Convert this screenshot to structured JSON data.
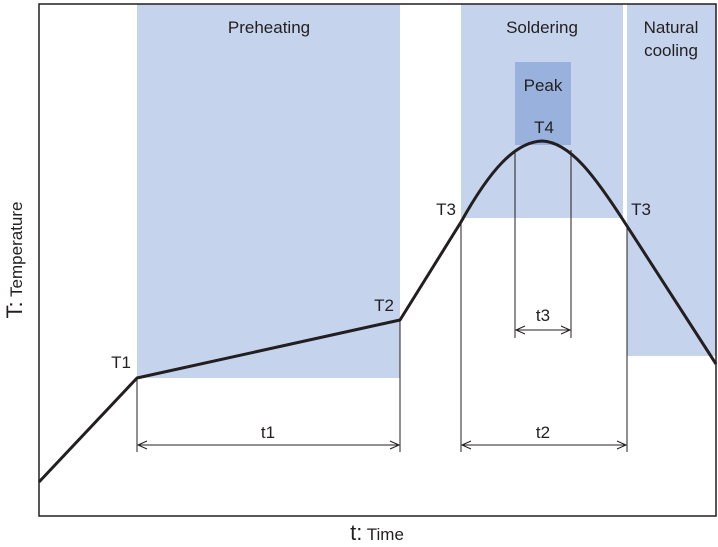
{
  "diagram": {
    "regions": {
      "preheating": "Preheating",
      "soldering": "Soldering",
      "natural_cooling_line1": "Natural",
      "natural_cooling_line2": "cooling",
      "peak": "Peak"
    },
    "temperature_points": {
      "t1_label": "T1",
      "t2_label": "T2",
      "t3_left_label": "T3",
      "t3_right_label": "T3",
      "t4_label": "T4"
    },
    "intervals": {
      "preheat_time": "t1",
      "soldering_time": "t2",
      "peak_time": "t3"
    },
    "axes": {
      "x_letter": "t",
      "x_sep": ":",
      "x_word": " Time",
      "y_letter": "T",
      "y_sep": ":",
      "y_word": " Temperature"
    },
    "colors": {
      "region_fill": "#c5d3ec",
      "peak_fill": "#98b1dd",
      "line": "#231f20"
    }
  }
}
